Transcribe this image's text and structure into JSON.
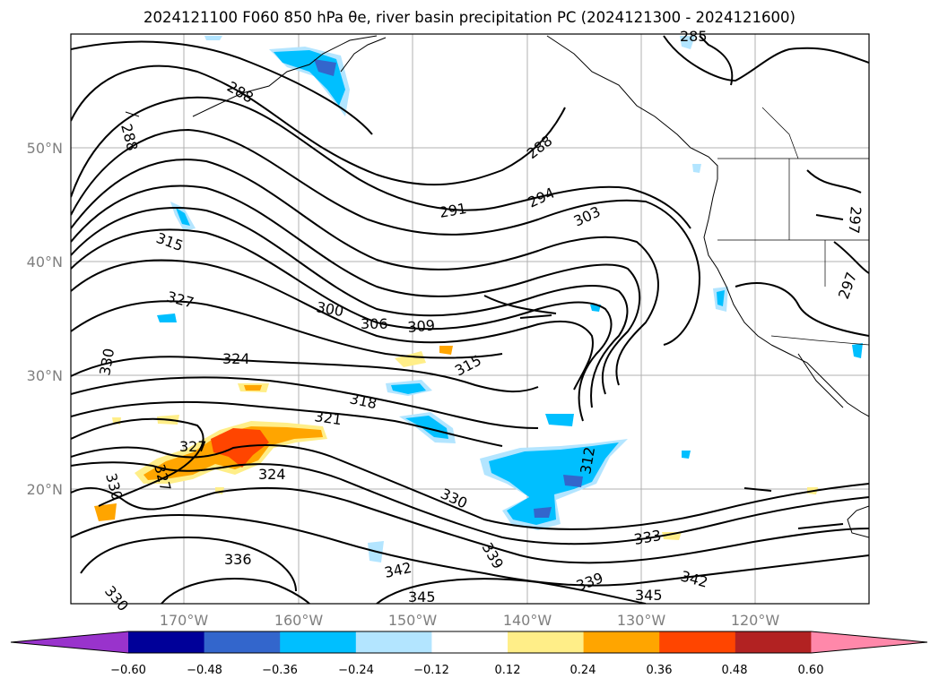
{
  "title": "2024121100 F060 850 hPa θe, river basin precipitation PC (2024121300 - 2024121600)",
  "map": {
    "lat_labels": [
      "50°N",
      "40°N",
      "30°N",
      "20°N"
    ],
    "lon_labels": [
      "170°W",
      "160°W",
      "150°W",
      "140°W",
      "130°W",
      "120°W"
    ],
    "contour_labels": [
      "288",
      "288",
      "285",
      "288",
      "291",
      "294",
      "303",
      "297",
      "297",
      "315",
      "327",
      "300",
      "306",
      "309",
      "330",
      "324",
      "315",
      "318",
      "321",
      "327",
      "327",
      "324",
      "312",
      "330",
      "330",
      "333",
      "336",
      "339",
      "342",
      "339",
      "342",
      "345",
      "345",
      "330"
    ]
  },
  "colorbar": {
    "colors": [
      "#9933cc",
      "#000099",
      "#3366cc",
      "#00bfff",
      "#b3e5ff",
      "#ffffff",
      "#ffee88",
      "#ffa500",
      "#ff4500",
      "#b22222",
      "#ff88aa"
    ],
    "ticks": [
      "−0.60",
      "−0.48",
      "−0.36",
      "−0.24",
      "−0.12",
      "0.12",
      "0.24",
      "0.36",
      "0.48",
      "0.60"
    ]
  }
}
